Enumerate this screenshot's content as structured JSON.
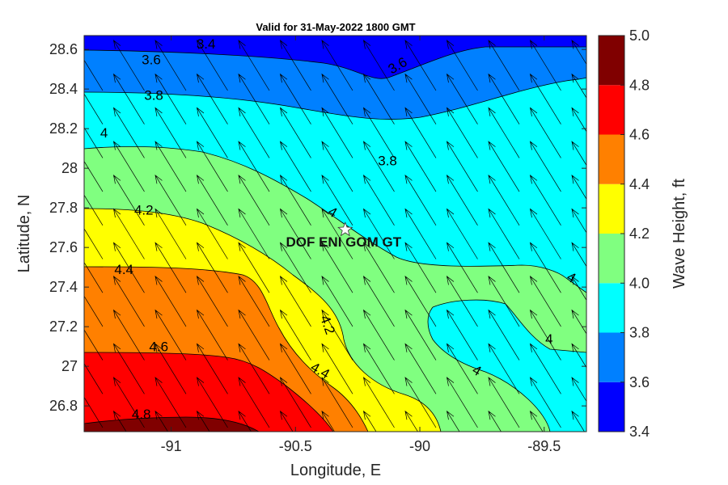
{
  "chart_data": {
    "type": "contour",
    "title": "Valid for 31-May-2022 1800 GMT",
    "xlabel": "Longitude, E",
    "ylabel": "Latitude, N",
    "xlim": [
      -91.35,
      -89.33
    ],
    "ylim": [
      26.67,
      28.67
    ],
    "x_ticks": [
      -91,
      -90.5,
      -90,
      -89.5
    ],
    "x_tick_labels": [
      "-91",
      "-90.5",
      "-90",
      "-89.5"
    ],
    "y_ticks": [
      26.8,
      27,
      27.2,
      27.4,
      27.6,
      27.8,
      28,
      28.2,
      28.4,
      28.6
    ],
    "y_tick_labels": [
      "26.8",
      "27",
      "27.2",
      "27.4",
      "27.6",
      "27.8",
      "28",
      "28.2",
      "28.4",
      "28.6"
    ],
    "colorbar": {
      "label": "Wave Height, ft",
      "min": 3.4,
      "max": 5.0,
      "ticks": [
        3.4,
        3.6,
        3.8,
        4.0,
        4.2,
        4.4,
        4.6,
        4.8,
        5.0
      ],
      "tick_labels": [
        "3.4",
        "3.6",
        "3.8",
        "4.0",
        "4.2",
        "4.4",
        "4.6",
        "4.8",
        "5.0"
      ],
      "colors": [
        "#0000ff",
        "#0080ff",
        "#00ffff",
        "#80ff80",
        "#ffff00",
        "#ff8000",
        "#ff0000",
        "#800000"
      ]
    },
    "contour_labels": [
      {
        "text": "3.4",
        "x": -90.86,
        "y": 28.63,
        "angle": 0
      },
      {
        "text": "3.6",
        "x": -91.08,
        "y": 28.55,
        "angle": 0
      },
      {
        "text": "3.6",
        "x": -90.09,
        "y": 28.52,
        "angle": -30
      },
      {
        "text": "3.8",
        "x": -91.07,
        "y": 28.37,
        "angle": 0
      },
      {
        "text": "3.8",
        "x": -90.13,
        "y": 28.04,
        "angle": 0
      },
      {
        "text": "4",
        "x": -91.27,
        "y": 28.18,
        "angle": 0
      },
      {
        "text": "4",
        "x": -90.35,
        "y": 27.78,
        "angle": 30
      },
      {
        "text": "4",
        "x": -89.39,
        "y": 27.45,
        "angle": 30
      },
      {
        "text": "4",
        "x": -89.48,
        "y": 27.14,
        "angle": 0
      },
      {
        "text": "4",
        "x": -89.77,
        "y": 26.98,
        "angle": 30
      },
      {
        "text": "4.2",
        "x": -91.11,
        "y": 27.79,
        "angle": 0
      },
      {
        "text": "4.2",
        "x": -90.37,
        "y": 27.21,
        "angle": 70
      },
      {
        "text": "4.4",
        "x": -91.19,
        "y": 27.49,
        "angle": 0
      },
      {
        "text": "4.4",
        "x": -90.4,
        "y": 26.98,
        "angle": 30
      },
      {
        "text": "4.6",
        "x": -91.05,
        "y": 27.1,
        "angle": 0
      },
      {
        "text": "4.8",
        "x": -91.12,
        "y": 26.76,
        "angle": 0
      }
    ],
    "station": {
      "name": "DOF ENI GOM GT",
      "lon": -90.3,
      "lat": 27.69
    },
    "vector_field": {
      "direction": "toward north-northwest",
      "uniform": true
    },
    "grid": false,
    "legend": "colorbar-right"
  }
}
